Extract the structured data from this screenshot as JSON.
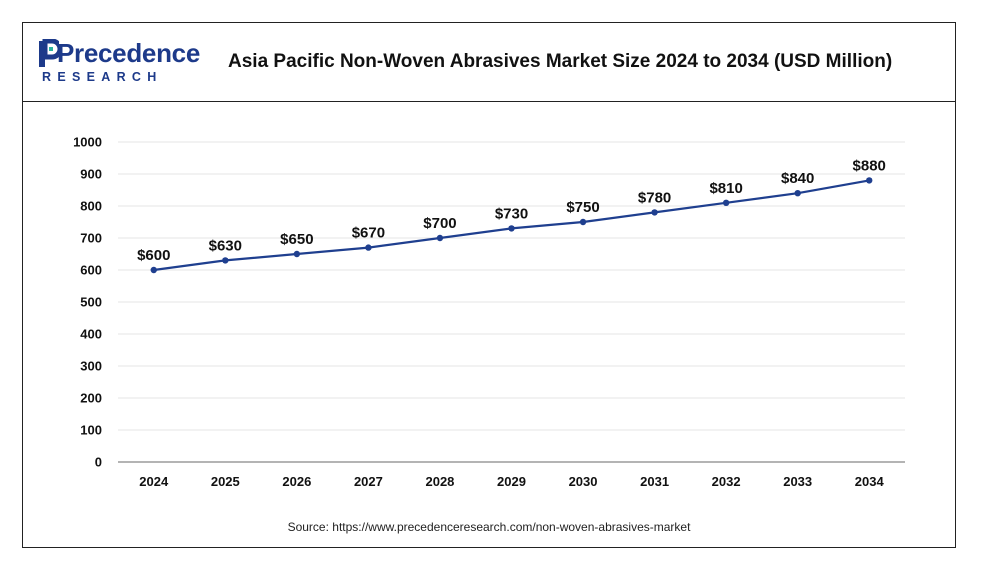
{
  "header": {
    "logo_word": "Precedence",
    "logo_sub": "RESEARCH",
    "title": "Asia Pacific Non-Woven Abrasives Market Size 2024 to 2034 (USD Million)"
  },
  "source": "Source: https://www.precedenceresearch.com/non-woven-abrasives-market",
  "colors": {
    "line": "#1f3f8f",
    "grid": "#e6e6e6",
    "text": "#111111"
  },
  "chart_data": {
    "type": "line",
    "title": "Asia Pacific Non-Woven Abrasives Market Size 2024 to 2034 (USD Million)",
    "x": [
      "2024",
      "2025",
      "2026",
      "2027",
      "2028",
      "2029",
      "2030",
      "2031",
      "2032",
      "2033",
      "2034"
    ],
    "series": [
      {
        "values": [
          600,
          630,
          650,
          670,
          700,
          730,
          750,
          780,
          810,
          840,
          880
        ],
        "labels": [
          "$600",
          "$630",
          "$650",
          "$670",
          "$700",
          "$730",
          "$750",
          "$780",
          "$810",
          "$840",
          "$880"
        ]
      }
    ],
    "ylim": [
      0,
      1000
    ],
    "yticks": [
      0,
      100,
      200,
      300,
      400,
      500,
      600,
      700,
      800,
      900,
      1000
    ],
    "grid": true,
    "xlabel": "",
    "ylabel": ""
  }
}
